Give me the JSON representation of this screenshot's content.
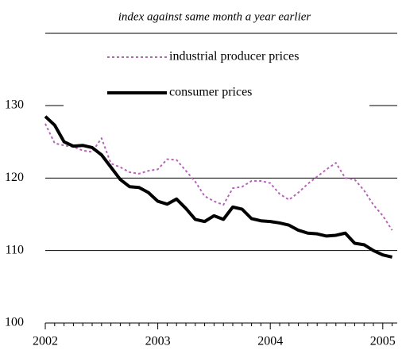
{
  "chart_data": {
    "type": "line",
    "title": "index against same month a year earlier",
    "categories": [
      "2002",
      null,
      null,
      null,
      null,
      null,
      null,
      null,
      null,
      null,
      null,
      null,
      "2003",
      null,
      null,
      null,
      null,
      null,
      null,
      null,
      null,
      null,
      null,
      null,
      "2004",
      null,
      null,
      null,
      null,
      null,
      null,
      null,
      null,
      null,
      null,
      null,
      "2005",
      null
    ],
    "series": [
      {
        "name": "industrial producer prices",
        "color": "#b565b5",
        "dash": "dotted",
        "values": [
          127.5,
          124.8,
          124.5,
          124.3,
          123.8,
          123.6,
          125.5,
          122,
          121.5,
          120.8,
          120.6,
          121,
          121.2,
          122.6,
          122.5,
          121,
          119.5,
          117.5,
          116.8,
          116.3,
          118.6,
          118.8,
          119.6,
          119.6,
          119.3,
          117.8,
          117,
          118,
          119.2,
          120.2,
          121.2,
          122.1,
          120,
          119.8,
          118.3,
          116.3,
          114.8,
          112.8
        ]
      },
      {
        "name": "consumer prices",
        "color": "#000000",
        "dash": "solid",
        "values": [
          128.5,
          127.3,
          125,
          124.4,
          124.5,
          124.2,
          123.2,
          121.5,
          119.8,
          118.8,
          118.7,
          118,
          116.8,
          116.4,
          117.1,
          115.8,
          114.3,
          114,
          114.8,
          114.3,
          116,
          115.7,
          114.4,
          114.1,
          114,
          113.8,
          113.5,
          112.8,
          112.4,
          112.3,
          112,
          112.1,
          112.4,
          111,
          110.8,
          110,
          109.4,
          109.1
        ]
      }
    ],
    "ylim": [
      100,
      130
    ],
    "yticks": [
      100,
      110,
      120,
      130
    ],
    "grid": true
  }
}
